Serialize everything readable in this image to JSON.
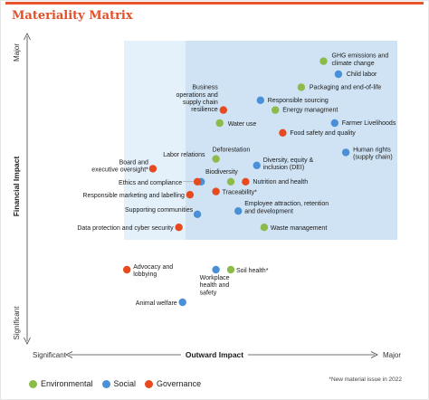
{
  "title": "Materiality Matrix",
  "footnote": "*New material issue in 2022",
  "colors": {
    "accent": "#e8552d",
    "Environmental": "#8cbb4a",
    "Social": "#4a90d6",
    "Governance": "#e84a1f",
    "zone_light": "#e4f0fa",
    "zone_dark": "#cfe3f4"
  },
  "chart_data": {
    "type": "scatter",
    "title": "Materiality Matrix",
    "xlabel": "Outward Impact",
    "ylabel": "Financial Impact",
    "x_ticks": [
      "Significant",
      "Major"
    ],
    "y_ticks": [
      "Major",
      "Significant"
    ],
    "xlim": [
      0,
      10
    ],
    "ylim": [
      0,
      10
    ],
    "grid": false,
    "legend_position": "bottom-left",
    "series": [
      {
        "name": "Environmental",
        "points": [
          {
            "label": "GHG emissions and climate change",
            "x": 8.0,
            "y": 8.9
          },
          {
            "label": "Packaging and end-of-life",
            "x": 7.4,
            "y": 8.1
          },
          {
            "label": "Energy managment",
            "x": 6.7,
            "y": 7.4
          },
          {
            "label": "Water use",
            "x": 5.2,
            "y": 7.0
          },
          {
            "label": "Deforestation",
            "x": 5.1,
            "y": 5.9
          },
          {
            "label": "Biodiversity",
            "x": 5.5,
            "y": 5.2
          },
          {
            "label": "Waste management",
            "x": 6.4,
            "y": 3.8
          },
          {
            "label": "Soil health*",
            "x": 5.5,
            "y": 2.5
          }
        ]
      },
      {
        "name": "Social",
        "points": [
          {
            "label": "Child labor",
            "x": 8.4,
            "y": 8.5
          },
          {
            "label": "Responsible sourcing",
            "x": 6.3,
            "y": 7.7
          },
          {
            "label": "Farmer Livelihoods",
            "x": 8.3,
            "y": 7.0
          },
          {
            "label": "Human rights (supply chain)",
            "x": 8.6,
            "y": 6.1
          },
          {
            "label": "Diversity, equity & inclusion (DEI)",
            "x": 6.2,
            "y": 5.7
          },
          {
            "label": "Labor relations",
            "x": 4.7,
            "y": 5.2
          },
          {
            "label": "Employee attraction, retention and development",
            "x": 5.7,
            "y": 4.3
          },
          {
            "label": "Supporting communities",
            "x": 4.6,
            "y": 4.2
          },
          {
            "label": "Workplace health and safety",
            "x": 5.1,
            "y": 2.5
          },
          {
            "label": "Animal welfare",
            "x": 4.2,
            "y": 1.5
          }
        ]
      },
      {
        "name": "Governance",
        "points": [
          {
            "label": "Business operations and supply chain resilience",
            "x": 5.3,
            "y": 7.4
          },
          {
            "label": "Food safety and quality",
            "x": 6.9,
            "y": 6.7
          },
          {
            "label": "Board and executive oversight*",
            "x": 3.4,
            "y": 5.6
          },
          {
            "label": "Ethics and compliance",
            "x": 4.6,
            "y": 5.2
          },
          {
            "label": "Nutrition and health",
            "x": 5.9,
            "y": 5.2
          },
          {
            "label": "Traceability*",
            "x": 5.1,
            "y": 4.9
          },
          {
            "label": "Responsible marketing and labelling",
            "x": 4.4,
            "y": 4.8
          },
          {
            "label": "Data protection and cyber security",
            "x": 4.1,
            "y": 3.8
          },
          {
            "label": "Advocacy and lobbying",
            "x": 2.7,
            "y": 2.5
          }
        ]
      }
    ]
  }
}
